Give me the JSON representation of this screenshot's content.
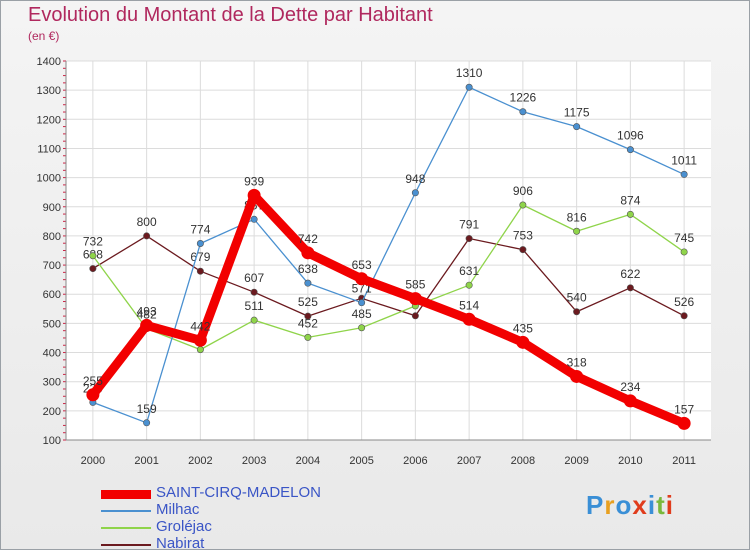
{
  "title": "Evolution du Montant de la Dette par Habitant",
  "subtitle": "(en €)",
  "brand": {
    "text": "Proxiti",
    "letter_colors": [
      "#3a8fd6",
      "#e8a020",
      "#3a8fd6",
      "#e03c1c",
      "#3a8fd6",
      "#7ab83c",
      "#e03c1c"
    ]
  },
  "chart_data": {
    "type": "line",
    "categories": [
      "2000",
      "2001",
      "2002",
      "2003",
      "2004",
      "2005",
      "2006",
      "2007",
      "2008",
      "2009",
      "2010",
      "2011"
    ],
    "yticks": [
      "1400",
      "1300",
      "1200",
      "1100",
      "1000",
      "900",
      "800",
      "700",
      "600",
      "500",
      "400",
      "300",
      "200",
      "100"
    ],
    "ylim": [
      100,
      1400
    ],
    "grid": true,
    "legend_placement": "bottom-left",
    "series": [
      {
        "name": "Nabirat",
        "color": "#6b1a1f",
        "values": [
          688,
          800,
          679,
          607,
          525,
          586,
          526,
          791,
          753,
          540,
          622,
          526
        ],
        "labels": [
          "688",
          "800",
          "679",
          "607",
          "525",
          "",
          "",
          "791",
          "753",
          "540",
          "622",
          "526"
        ]
      },
      {
        "name": "Groléjac",
        "color": "#8fd44a",
        "values": [
          732,
          482,
          410,
          511,
          452,
          485,
          560,
          631,
          906,
          816,
          874,
          745
        ],
        "labels": [
          "732",
          "482",
          "",
          "511",
          "452",
          "485",
          "",
          "631",
          "906",
          "816",
          "874",
          "745"
        ]
      },
      {
        "name": "Milhac",
        "color": "#4a90d0",
        "values": [
          229,
          159,
          774,
          857,
          638,
          571,
          948,
          1310,
          1226,
          1175,
          1096,
          1011
        ],
        "labels": [
          "229",
          "159",
          "774",
          "857",
          "638",
          "571",
          "948",
          "1310",
          "1226",
          "1175",
          "1096",
          "1011"
        ]
      },
      {
        "name": "SAINT-CIRQ-MADELON",
        "color": "#f20000",
        "values": [
          255,
          493,
          442,
          939,
          742,
          653,
          585,
          514,
          435,
          318,
          234,
          157
        ],
        "labels": [
          "255",
          "493",
          "442",
          "939",
          "742",
          "653",
          "585",
          "514",
          "435",
          "318",
          "234",
          "157"
        ]
      }
    ],
    "legend_order": [
      "SAINT-CIRQ-MADELON",
      "Milhac",
      "Groléjac",
      "Nabirat"
    ]
  }
}
